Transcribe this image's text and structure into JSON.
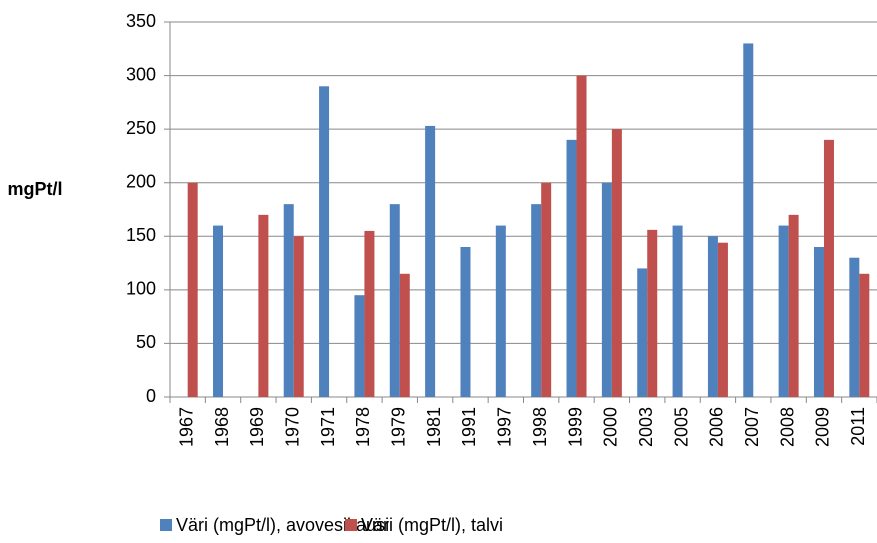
{
  "chart_data": {
    "type": "bar",
    "y_label": "mgPt/l",
    "categories": [
      "1967",
      "1968",
      "1969",
      "1970",
      "1971",
      "1978",
      "1979",
      "1981",
      "1991",
      "1997",
      "1998",
      "1999",
      "2000",
      "2003",
      "2005",
      "2006",
      "2007",
      "2008",
      "2009",
      "2011"
    ],
    "series": [
      {
        "name": "Väri (mgPt/l), avovesikausi",
        "color": "#4f81bd",
        "values": [
          null,
          160,
          null,
          180,
          290,
          95,
          180,
          253,
          140,
          160,
          180,
          240,
          200,
          120,
          160,
          150,
          330,
          160,
          140,
          130
        ]
      },
      {
        "name": "Väri (mgPt/l), talvi",
        "color": "#c0504d",
        "values": [
          200,
          null,
          170,
          150,
          null,
          155,
          115,
          null,
          null,
          null,
          200,
          300,
          250,
          156,
          null,
          144,
          null,
          170,
          240,
          115
        ]
      }
    ],
    "ylim": [
      0,
      350
    ],
    "yticks": [
      0,
      50,
      100,
      150,
      200,
      250,
      300,
      350
    ],
    "grid": true,
    "legend": "bottom"
  }
}
